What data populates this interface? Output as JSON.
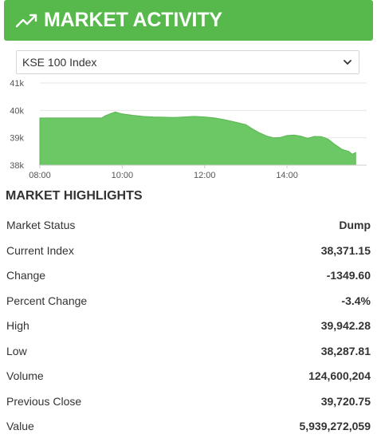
{
  "header": {
    "title": "MARKET ACTIVITY",
    "icon": "trending-up-icon"
  },
  "selector": {
    "selected": "KSE 100 Index"
  },
  "chart_data": {
    "type": "area",
    "y_ticks": [
      "41k",
      "40k",
      "39k",
      "38k"
    ],
    "x_ticks": [
      "08:00",
      "10:00",
      "12:00",
      "14:00"
    ],
    "ylim": [
      38000,
      41000
    ],
    "xlim": [
      "08:00",
      "15:45"
    ],
    "series": [
      {
        "color": "#6cc765",
        "x": [
          "08:00",
          "09:30",
          "09:35",
          "09:45",
          "09:50",
          "10:00",
          "10:15",
          "10:30",
          "10:45",
          "11:00",
          "11:15",
          "11:30",
          "11:45",
          "12:00",
          "12:15",
          "12:30",
          "12:45",
          "13:00",
          "13:10",
          "13:20",
          "13:30",
          "13:40",
          "13:50",
          "14:00",
          "14:10",
          "14:20",
          "14:30",
          "14:40",
          "14:50",
          "15:00",
          "15:10",
          "15:20",
          "15:30",
          "15:35",
          "15:40"
        ],
        "y": [
          39720,
          39720,
          39800,
          39900,
          39940,
          39870,
          39820,
          39780,
          39760,
          39750,
          39740,
          39760,
          39780,
          39760,
          39720,
          39650,
          39570,
          39480,
          39320,
          39180,
          39070,
          39000,
          39010,
          39080,
          39100,
          39060,
          38980,
          39050,
          39040,
          38950,
          38750,
          38580,
          38500,
          38400,
          38460
        ]
      }
    ]
  },
  "highlights": {
    "title": "MARKET HIGHLIGHTS",
    "rows": [
      {
        "label": "Market Status",
        "value": "Dump"
      },
      {
        "label": "Current Index",
        "value": "38,371.15"
      },
      {
        "label": "Change",
        "value": "-1349.60"
      },
      {
        "label": "Percent Change",
        "value": "-3.4%"
      },
      {
        "label": "High",
        "value": "39,942.28"
      },
      {
        "label": "Low",
        "value": "38,287.81"
      },
      {
        "label": "Volume",
        "value": "124,600,204"
      },
      {
        "label": "Previous Close",
        "value": "39,720.75"
      },
      {
        "label": "Value",
        "value": "5,939,272,059"
      }
    ]
  }
}
